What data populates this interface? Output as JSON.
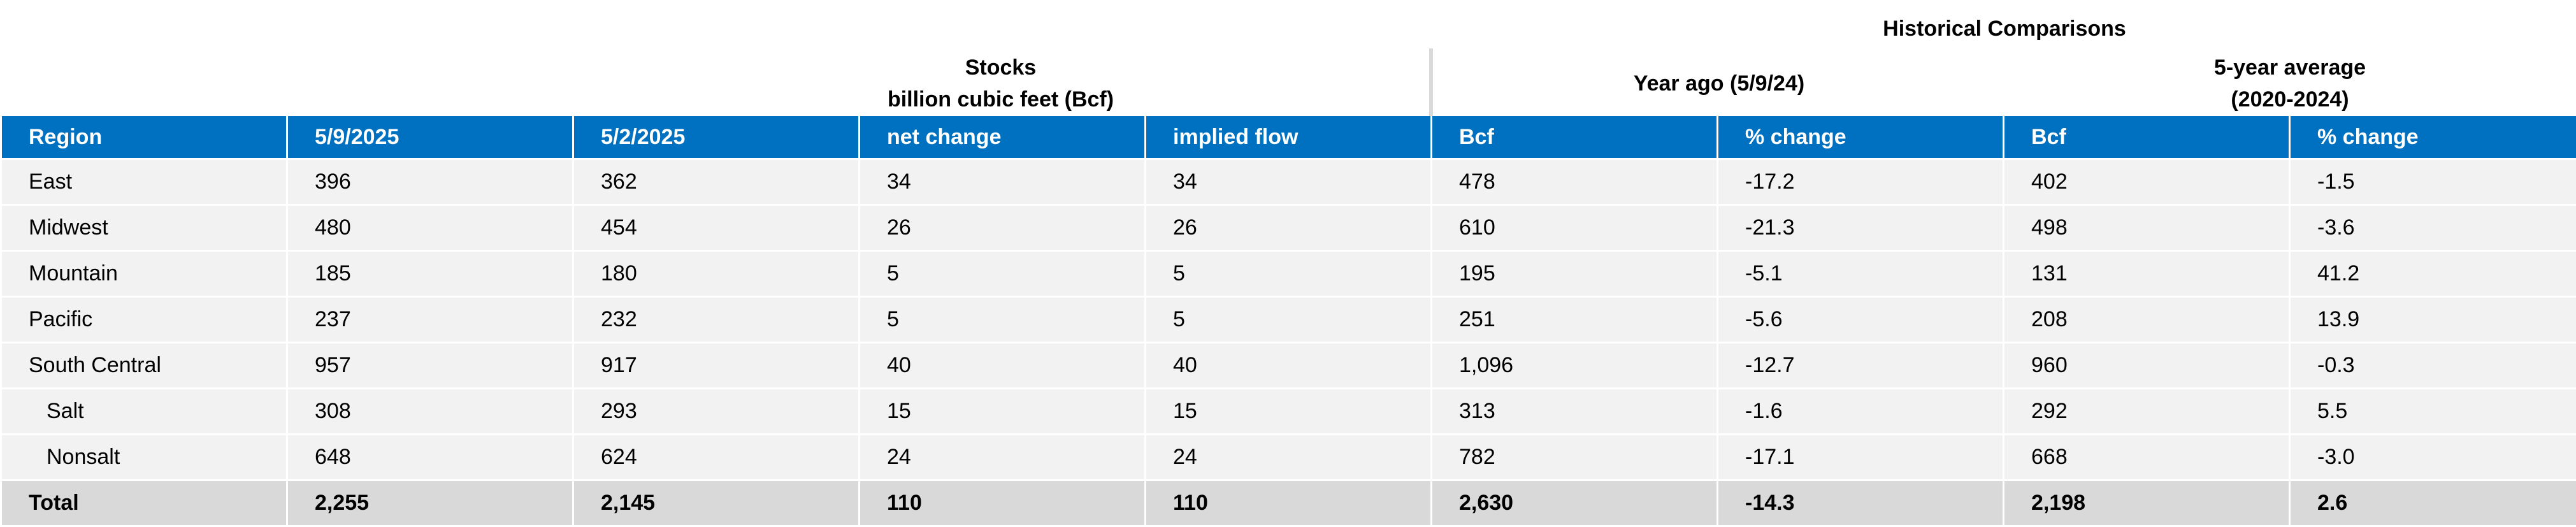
{
  "header": {
    "historical": "Historical Comparisons",
    "stocks_line1": "Stocks",
    "stocks_line2": "billion cubic feet (Bcf)",
    "year_ago": "Year ago (5/9/24)",
    "five_year_line1": "5-year average",
    "five_year_line2": "(2020-2024)"
  },
  "columns": [
    "Region",
    "5/9/2025",
    "5/2/2025",
    "net change",
    "implied flow",
    "Bcf",
    "% change",
    "Bcf",
    "% change"
  ],
  "rows": [
    {
      "region": "East",
      "c1": "396",
      "c2": "362",
      "c3": "34",
      "c4": "34",
      "c5": "478",
      "c6": "-17.2",
      "c7": "402",
      "c8": "-1.5"
    },
    {
      "region": "Midwest",
      "c1": "480",
      "c2": "454",
      "c3": "26",
      "c4": "26",
      "c5": "610",
      "c6": "-21.3",
      "c7": "498",
      "c8": "-3.6"
    },
    {
      "region": "Mountain",
      "c1": "185",
      "c2": "180",
      "c3": "5",
      "c4": "5",
      "c5": "195",
      "c6": "-5.1",
      "c7": "131",
      "c8": "41.2"
    },
    {
      "region": "Pacific",
      "c1": "237",
      "c2": "232",
      "c3": "5",
      "c4": "5",
      "c5": "251",
      "c6": "-5.6",
      "c7": "208",
      "c8": "13.9"
    },
    {
      "region": "South Central",
      "c1": "957",
      "c2": "917",
      "c3": "40",
      "c4": "40",
      "c5": "1,096",
      "c6": "-12.7",
      "c7": "960",
      "c8": "-0.3"
    },
    {
      "region": "Salt",
      "c1": "308",
      "c2": "293",
      "c3": "15",
      "c4": "15",
      "c5": "313",
      "c6": "-1.6",
      "c7": "292",
      "c8": "5.5"
    },
    {
      "region": "Nonsalt",
      "c1": "648",
      "c2": "624",
      "c3": "24",
      "c4": "24",
      "c5": "782",
      "c6": "-17.1",
      "c7": "668",
      "c8": "-3.0"
    }
  ],
  "total": {
    "region": "Total",
    "c1": "2,255",
    "c2": "2,145",
    "c3": "110",
    "c4": "110",
    "c5": "2,630",
    "c6": "-14.3",
    "c7": "2,198",
    "c8": "2.6"
  },
  "colors": {
    "header_bg": "#0070c0",
    "row_bg": "#f2f2f2",
    "total_bg": "#d9d9d9"
  }
}
